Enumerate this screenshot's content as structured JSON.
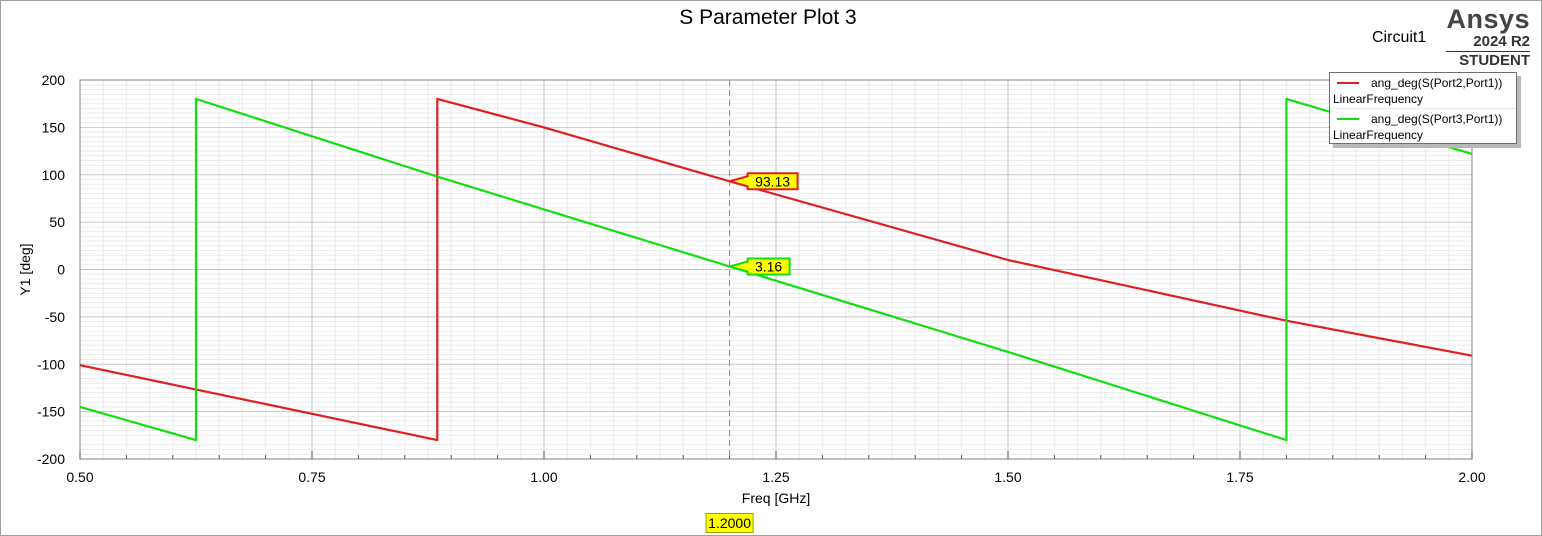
{
  "header": {
    "circuit": "Circuit1",
    "brand_name": "Ansys",
    "brand_version": "2024 R2",
    "brand_edition": "STUDENT"
  },
  "legend": {
    "entries": [
      {
        "name": "ang_deg(S(Port2,Port1))",
        "sub": "LinearFrequency",
        "color": "#e02020"
      },
      {
        "name": "ang_deg(S(Port3,Port1))",
        "sub": "LinearFrequency",
        "color": "#10e010"
      }
    ]
  },
  "chart_data": {
    "type": "line",
    "title": "S Parameter Plot 3",
    "xlabel": "Freq [GHz]",
    "ylabel": "Y1 [deg]",
    "xlim": [
      0.5,
      2.0
    ],
    "ylim": [
      -200,
      200
    ],
    "x_ticks": [
      "0.50",
      "0.75",
      "1.00",
      "1.25",
      "1.50",
      "1.75",
      "2.00"
    ],
    "y_ticks": [
      "200",
      "150",
      "100",
      "50",
      "0",
      "-50",
      "-100",
      "-150",
      "-200"
    ],
    "grid": true,
    "legend_position": "top-right",
    "series": [
      {
        "name": "ang_deg(S(Port2,Port1))",
        "color": "#e02020",
        "points": [
          [
            0.5,
            -101
          ],
          [
            0.885,
            -180
          ],
          [
            0.885,
            180
          ],
          [
            1.0,
            150
          ],
          [
            1.2,
            93.13
          ],
          [
            1.5,
            10
          ],
          [
            1.8,
            -54
          ],
          [
            2.0,
            -91
          ]
        ]
      },
      {
        "name": "ang_deg(S(Port3,Port1))",
        "color": "#10e010",
        "points": [
          [
            0.5,
            -145
          ],
          [
            0.625,
            -180
          ],
          [
            0.625,
            180
          ],
          [
            0.885,
            98
          ],
          [
            1.2,
            3.16
          ],
          [
            1.5,
            -87
          ],
          [
            1.8,
            -180
          ],
          [
            1.8,
            180
          ],
          [
            2.0,
            122
          ]
        ]
      }
    ],
    "marker": {
      "x": 1.2,
      "x_label": "1.2000",
      "values": [
        {
          "label": "93.13",
          "y": 93.13,
          "color": "#e02020"
        },
        {
          "label": "3.16",
          "y": 3.16,
          "color": "#10e010"
        }
      ]
    }
  }
}
